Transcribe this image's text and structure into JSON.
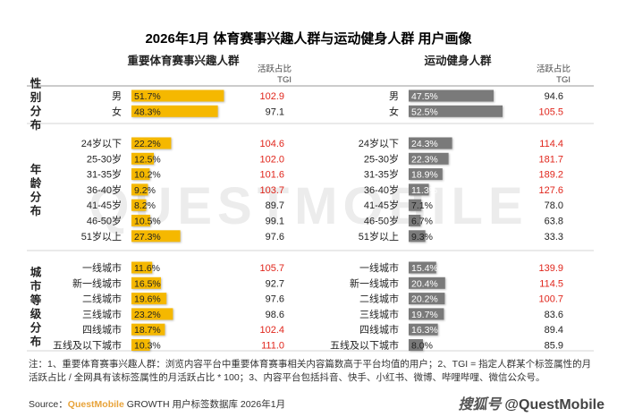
{
  "title": "2026年1月 体育赛事兴趣人群与运动健身人群 用户画像",
  "colors": {
    "left_bar": "#f5b800",
    "right_bar": "#7a7a7a",
    "highlight": "#e0251b",
    "normal": "#222222",
    "brand": "#e8a33a"
  },
  "watermark_bg": "QUESTMOBILE",
  "chart_data": {
    "type": "bar",
    "tgi_label": [
      "活跃占比",
      "TGI"
    ],
    "panels": [
      {
        "name": "重要体育赛事兴趣人群",
        "color": "#f5b800"
      },
      {
        "name": "运动健身人群",
        "color": "#7a7a7a"
      }
    ],
    "groups": [
      {
        "label": [
          "性",
          "别",
          "分",
          "布"
        ],
        "rows": [
          {
            "category": "男",
            "left_value": 51.7,
            "left_label": "51.7%",
            "left_tgi": "102.9",
            "left_hi": true,
            "right_value": 47.5,
            "right_label": "47.5%",
            "right_tgi": "94.6",
            "right_hi": false
          },
          {
            "category": "女",
            "left_value": 48.3,
            "left_label": "48.3%",
            "left_tgi": "97.1",
            "left_hi": false,
            "right_value": 52.5,
            "right_label": "52.5%",
            "right_tgi": "105.5",
            "right_hi": true
          }
        ]
      },
      {
        "label": [
          "年",
          "龄",
          "分",
          "布"
        ],
        "rows": [
          {
            "category": "24岁以下",
            "left_value": 22.2,
            "left_label": "22.2%",
            "left_tgi": "104.6",
            "left_hi": true,
            "right_value": 24.3,
            "right_label": "24.3%",
            "right_tgi": "114.4",
            "right_hi": true
          },
          {
            "category": "25-30岁",
            "left_value": 12.5,
            "left_label": "12.5%",
            "left_tgi": "102.0",
            "left_hi": true,
            "right_value": 22.3,
            "right_label": "22.3%",
            "right_tgi": "181.7",
            "right_hi": true
          },
          {
            "category": "31-35岁",
            "left_value": 10.2,
            "left_label": "10.2%",
            "left_tgi": "101.6",
            "left_hi": true,
            "right_value": 18.9,
            "right_label": "18.9%",
            "right_tgi": "189.2",
            "right_hi": true
          },
          {
            "category": "36-40岁",
            "left_value": 9.2,
            "left_label": "9.2%",
            "left_tgi": "103.7",
            "left_hi": true,
            "right_value": 11.3,
            "right_label": "11.3%",
            "right_tgi": "127.6",
            "right_hi": true
          },
          {
            "category": "41-45岁",
            "left_value": 8.2,
            "left_label": "8.2%",
            "left_tgi": "89.7",
            "left_hi": false,
            "right_value": 7.1,
            "right_label": "7.1%",
            "right_tgi": "78.0",
            "right_hi": false
          },
          {
            "category": "46-50岁",
            "left_value": 10.5,
            "left_label": "10.5%",
            "left_tgi": "99.1",
            "left_hi": false,
            "right_value": 6.7,
            "right_label": "6.7%",
            "right_tgi": "63.8",
            "right_hi": false
          },
          {
            "category": "51岁以上",
            "left_value": 27.3,
            "left_label": "27.3%",
            "left_tgi": "97.6",
            "left_hi": false,
            "right_value": 9.3,
            "right_label": "9.3%",
            "right_tgi": "33.3",
            "right_hi": false
          }
        ]
      },
      {
        "label": [
          "城",
          "市",
          "等",
          "级",
          "分",
          "布"
        ],
        "rows": [
          {
            "category": "一线城市",
            "left_value": 11.6,
            "left_label": "11.6%",
            "left_tgi": "105.7",
            "left_hi": true,
            "right_value": 15.4,
            "right_label": "15.4%",
            "right_tgi": "139.9",
            "right_hi": true
          },
          {
            "category": "新一线城市",
            "left_value": 16.5,
            "left_label": "16.5%",
            "left_tgi": "92.7",
            "left_hi": false,
            "right_value": 20.4,
            "right_label": "20.4%",
            "right_tgi": "114.5",
            "right_hi": true
          },
          {
            "category": "二线城市",
            "left_value": 19.6,
            "left_label": "19.6%",
            "left_tgi": "97.6",
            "left_hi": false,
            "right_value": 20.2,
            "right_label": "20.2%",
            "right_tgi": "100.7",
            "right_hi": true
          },
          {
            "category": "三线城市",
            "left_value": 23.2,
            "left_label": "23.2%",
            "left_tgi": "98.6",
            "left_hi": false,
            "right_value": 19.7,
            "right_label": "19.7%",
            "right_tgi": "83.6",
            "right_hi": false
          },
          {
            "category": "四线城市",
            "left_value": 18.7,
            "left_label": "18.7%",
            "left_tgi": "102.4",
            "left_hi": true,
            "right_value": 16.3,
            "right_label": "16.3%",
            "right_tgi": "89.4",
            "right_hi": false
          },
          {
            "category": "五线及以下城市",
            "left_value": 10.3,
            "left_label": "10.3%",
            "left_tgi": "111.0",
            "left_hi": true,
            "right_value": 8.0,
            "right_label": "8.0%",
            "right_tgi": "85.9",
            "right_hi": false
          }
        ]
      }
    ]
  },
  "footnote": "注：1、重要体育赛事兴趣人群：浏览内容平台中重要体育赛事相关内容篇数高于平台均值的用户；2、TGI = 指定人群某个标签属性的月活跃占比 / 全网具有该标签属性的月活跃占比 * 100；3、内容平台包括抖音、快手、小红书、微博、哔哩哔哩、微信公众号。",
  "source": {
    "prefix": "Source：",
    "brand": "QuestMobile",
    "suffix": " GROWTH 用户标签数据库  2026年1月"
  },
  "watermark": {
    "brand": "搜狐号",
    "handle": "@QuestMobile"
  }
}
